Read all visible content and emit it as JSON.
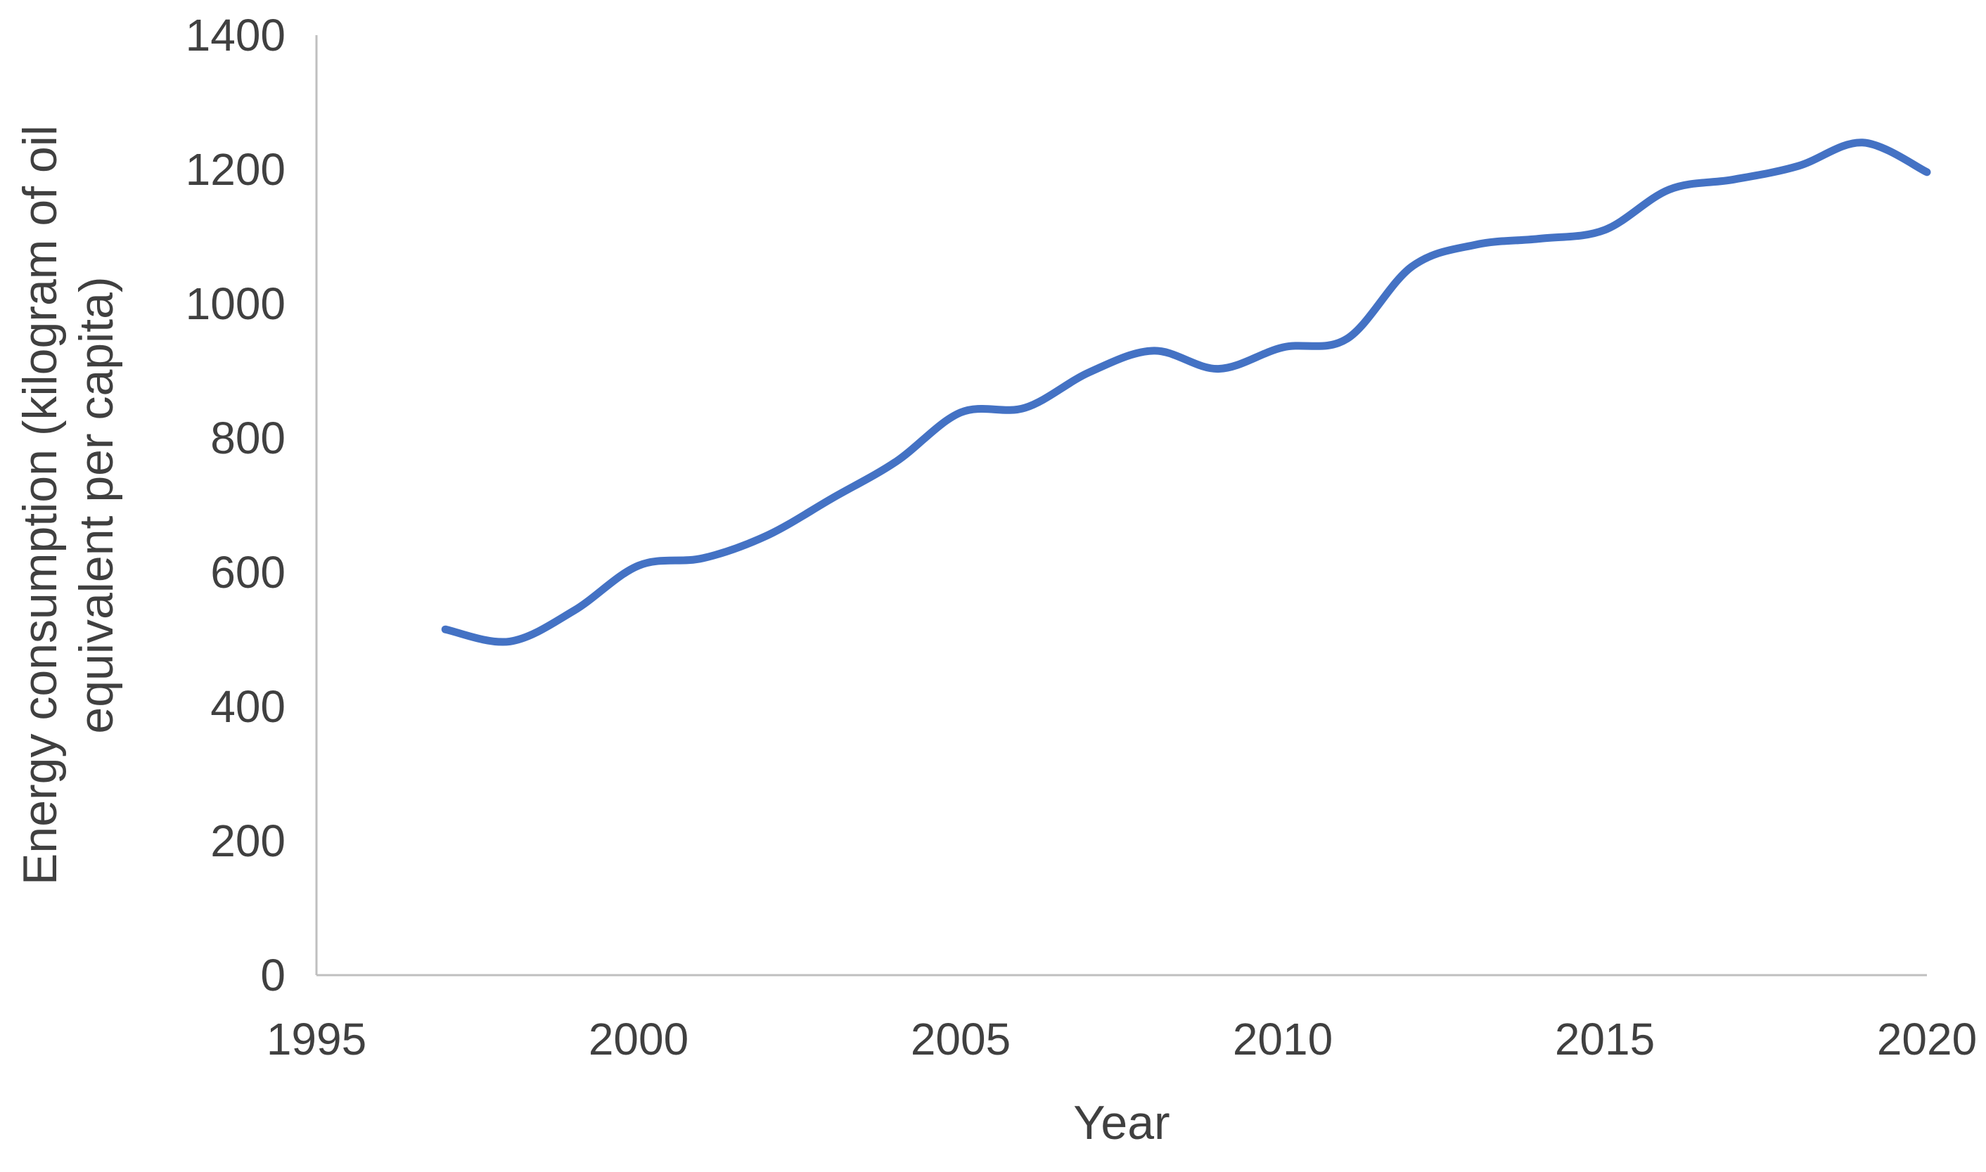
{
  "chart_data": {
    "type": "line",
    "title": "",
    "xlabel": "Year",
    "ylabel": "Energy consumption (kilogram of oil equivalent per capita)",
    "ylabel_lines": [
      "Energy consumption (kilogram of oil",
      "equivalent per capita)"
    ],
    "x": [
      1997,
      1998,
      1999,
      2000,
      2001,
      2002,
      2003,
      2004,
      2005,
      2006,
      2007,
      2008,
      2009,
      2010,
      2011,
      2012,
      2013,
      2014,
      2015,
      2016,
      2017,
      2018,
      2019,
      2020
    ],
    "series": [
      {
        "name": "Energy consumption (kilogram of oil equivalent per capita)",
        "values": [
          515,
          497,
          543,
          610,
          621,
          655,
          710,
          765,
          838,
          845,
          898,
          930,
          903,
          935,
          948,
          1055,
          1088,
          1097,
          1110,
          1170,
          1185,
          1205,
          1240,
          1196
        ]
      }
    ],
    "xlim": [
      1995,
      2020
    ],
    "ylim": [
      0,
      1400
    ],
    "xticks": [
      1995,
      2000,
      2005,
      2010,
      2015,
      2020
    ],
    "yticks": [
      0,
      200,
      400,
      600,
      800,
      1000,
      1200,
      1400
    ],
    "grid": false,
    "legend": "none",
    "line_smoothing": true,
    "line_color": "#4472C4",
    "axis_color": "#BFBFBF",
    "text_color": "#404040"
  }
}
